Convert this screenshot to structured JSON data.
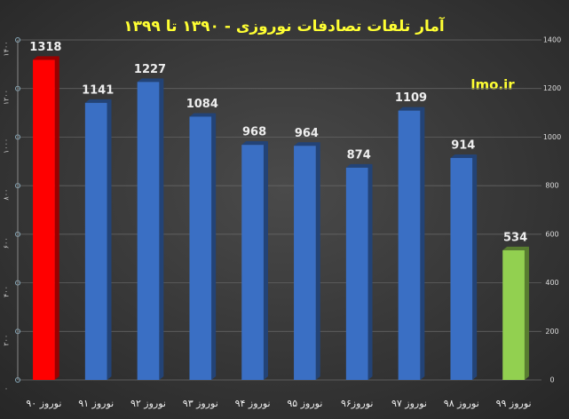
{
  "chart_data": {
    "type": "bar",
    "title": "آمار تلفات تصادفات نوروزی - ۱۳۹۰ تا ۱۳۹۹",
    "annotation": "lmo.ir",
    "categories": [
      "نوروز ۹۰",
      "نوروز ۹۱",
      "نوروز ۹۲",
      "نوروز ۹۳",
      "نوروز ۹۴",
      "نوروز ۹۵",
      "نوروز۹۶",
      "نوروز ۹۷",
      "نوروز ۹۸",
      "نوروز ۹۹"
    ],
    "values": [
      1318,
      1141,
      1227,
      1084,
      968,
      964,
      874,
      1109,
      914,
      534
    ],
    "colors": [
      "#ff0000",
      "#3a6fc4",
      "#3a6fc4",
      "#3a6fc4",
      "#3a6fc4",
      "#3a6fc4",
      "#3a6fc4",
      "#3a6fc4",
      "#3a6fc4",
      "#92d050"
    ],
    "ylim": [
      0,
      1400
    ],
    "yticks": [
      0,
      200,
      400,
      600,
      800,
      1000,
      1200,
      1400
    ],
    "y2lim": [
      0,
      1400
    ],
    "y2ticks": [
      {
        "value": 0,
        "label": "۰"
      },
      {
        "value": 200,
        "label": "۲۰۰"
      },
      {
        "value": 400,
        "label": "۴۰۰"
      },
      {
        "value": 600,
        "label": "۶۰۰"
      },
      {
        "value": 800,
        "label": "۸۰۰"
      },
      {
        "value": 1000,
        "label": "۱۰۰۰"
      },
      {
        "value": 1200,
        "label": "۱۲۰۰"
      },
      {
        "value": 1400,
        "label": "۱۴۰۰"
      }
    ],
    "grid": true
  }
}
